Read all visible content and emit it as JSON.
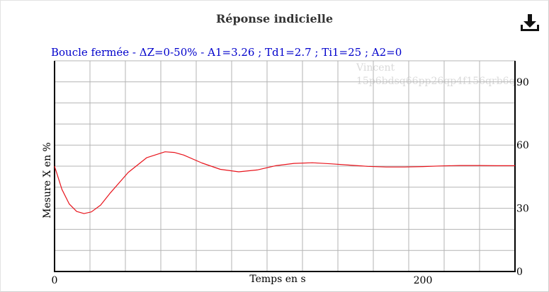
{
  "header": {
    "title": "Réponse indicielle",
    "download_icon": "download-icon"
  },
  "watermark": {
    "line1": "Vincent",
    "line2": "15p6bdsq66pp26qp4f156qrb6q"
  },
  "chart_data": {
    "type": "line",
    "title": "Réponse indicielle",
    "subtitle": "Boucle fermée - ΔZ=0-50% - A1=3.26 ; Td1=2.7 ; Ti1=25 ; A2=0",
    "xlabel": "Temps en s",
    "ylabel": "Mesure X en %",
    "xlim": [
      0,
      250
    ],
    "ylim": [
      0,
      100
    ],
    "x_ticks": [
      {
        "value": 0,
        "label": "0"
      },
      {
        "value": 200,
        "label": "200"
      }
    ],
    "y_ticks": [
      {
        "value": 0,
        "label": "0"
      },
      {
        "value": 30,
        "label": "30"
      },
      {
        "value": 60,
        "label": "60"
      },
      {
        "value": 90,
        "label": "90"
      }
    ],
    "grid": true,
    "grid_x_step": 19.23,
    "grid_y_step": 10,
    "series": [
      {
        "color": "#e8141c",
        "x": [
          0,
          4,
          8,
          12,
          16,
          20,
          25,
          30,
          40,
          50,
          60,
          65,
          70,
          80,
          90,
          100,
          110,
          120,
          130,
          140,
          150,
          160,
          170,
          180,
          190,
          200,
          210,
          220,
          230,
          240,
          250
        ],
        "y": [
          50,
          39,
          32,
          28.5,
          27.5,
          28.3,
          31.5,
          37,
          47,
          54,
          56.8,
          56.5,
          55.3,
          51.5,
          48.5,
          47.3,
          48.2,
          50.2,
          51.3,
          51.6,
          51.1,
          50.5,
          49.9,
          49.6,
          49.6,
          49.8,
          50.1,
          50.3,
          50.3,
          50.2,
          50.2
        ]
      }
    ]
  }
}
